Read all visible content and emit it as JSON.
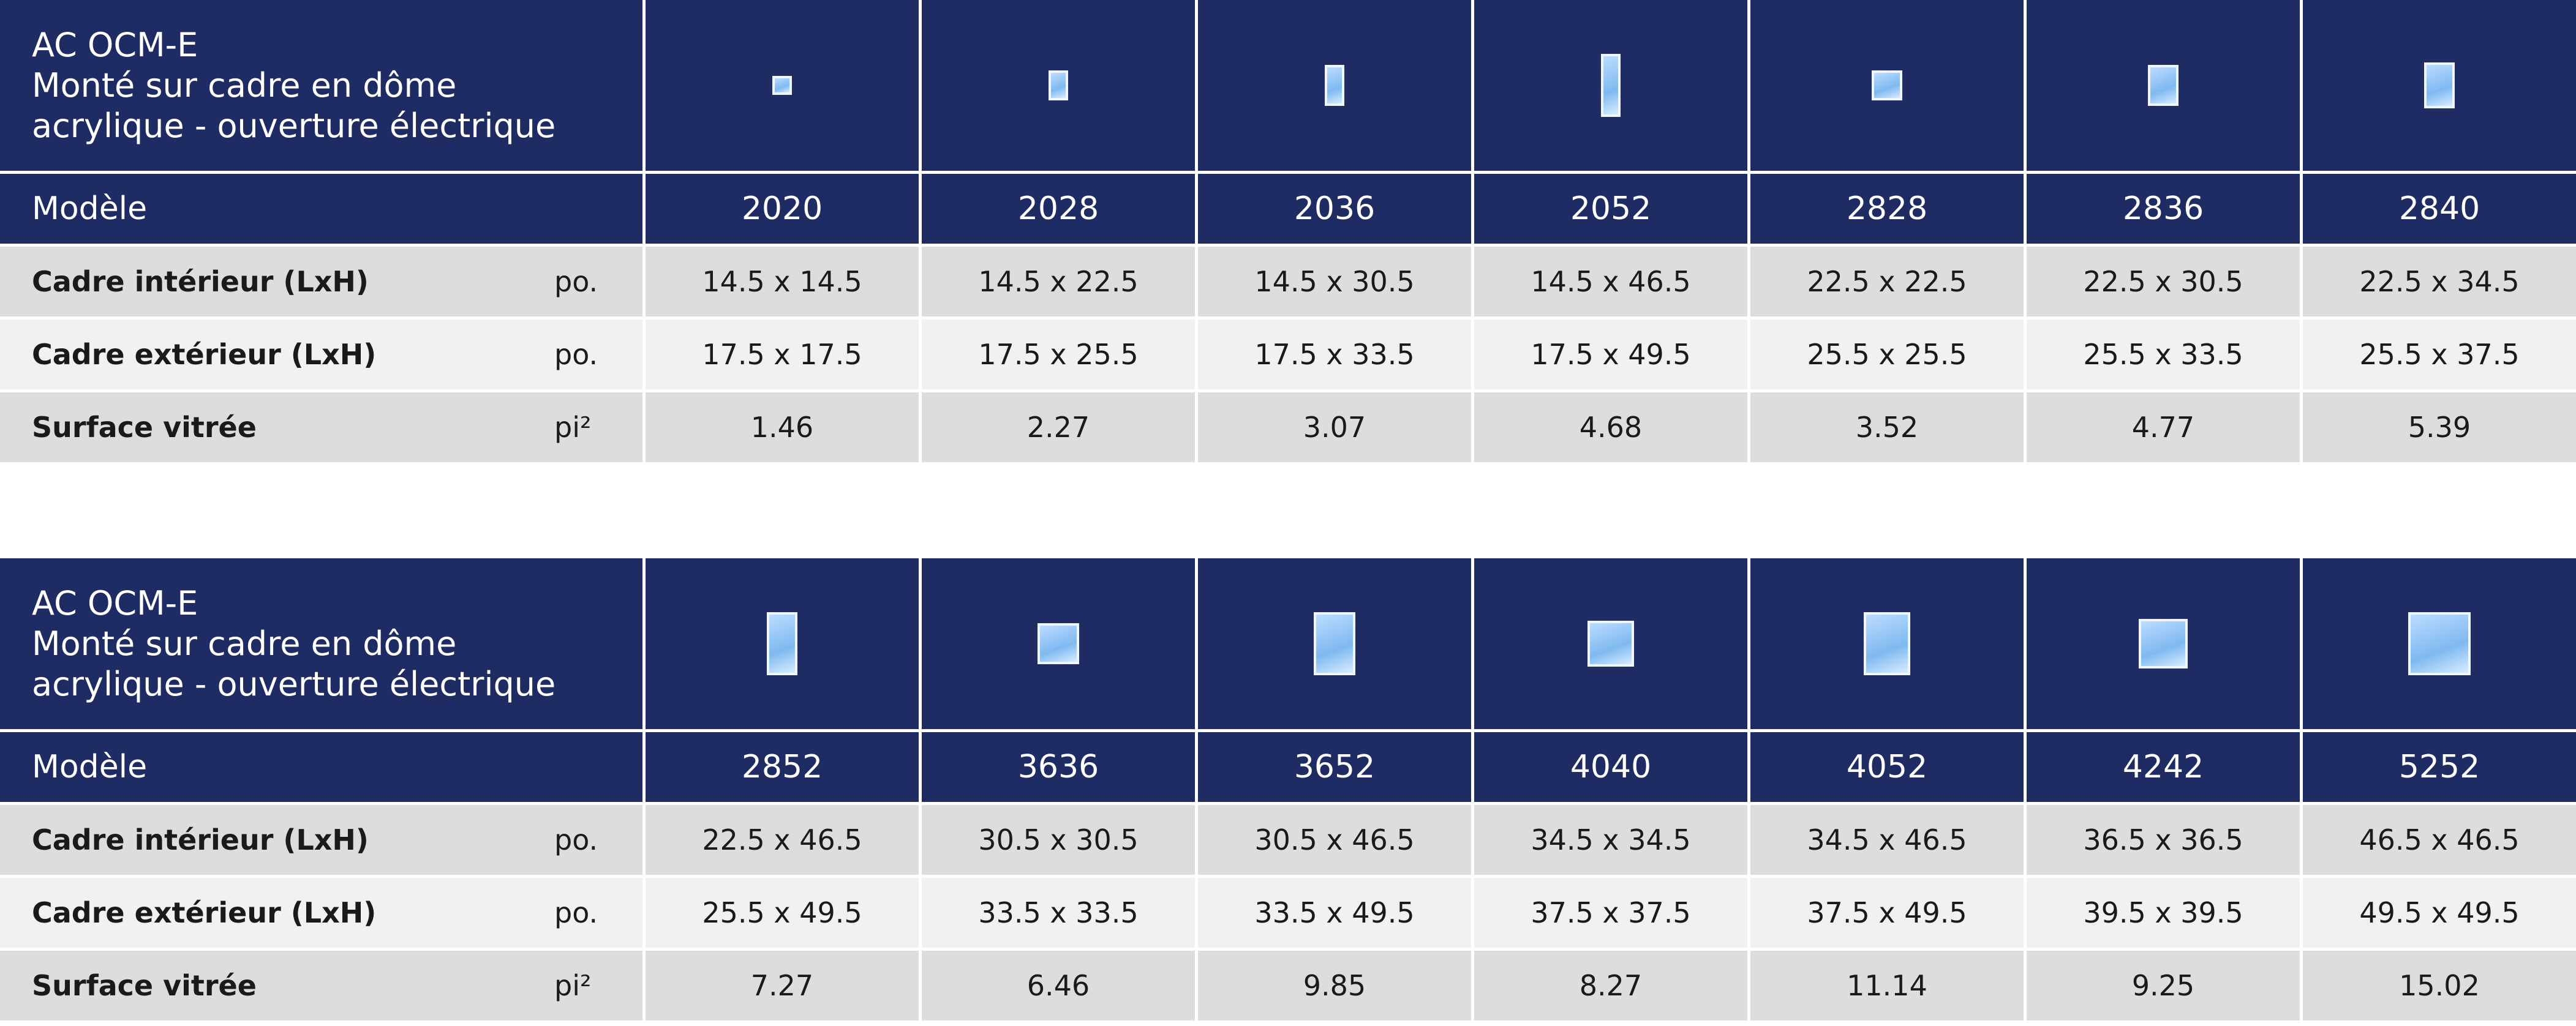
{
  "tables": [
    {
      "title_lines": [
        "AC OCM-E",
        "Monté sur cadre en dôme",
        "acrylique - ouverture électrique"
      ],
      "model_label": "Modèle",
      "models": [
        "2020",
        "2028",
        "2036",
        "2052",
        "2828",
        "2836",
        "2840"
      ],
      "rows": [
        {
          "label": "Cadre intérieur (LxH)",
          "unit": "po.",
          "values": [
            "14.5 x 14.5",
            "14.5 x 22.5",
            "14.5 x 30.5",
            "14.5 x 46.5",
            "22.5 x 22.5",
            "22.5 x 30.5",
            "22.5 x 34.5"
          ]
        },
        {
          "label": "Cadre extérieur (LxH)",
          "unit": "po.",
          "values": [
            "17.5 x 17.5",
            "17.5 x 25.5",
            "17.5 x 33.5",
            "17.5 x 49.5",
            "25.5 x 25.5",
            "25.5 x 33.5",
            "25.5 x 37.5"
          ]
        },
        {
          "label": "Surface vitrée",
          "unit": "pi²",
          "values": [
            "1.46",
            "2.27",
            "3.07",
            "4.68",
            "3.52",
            "4.77",
            "5.39"
          ]
        }
      ]
    },
    {
      "title_lines": [
        "AC OCM-E",
        "Monté sur cadre en dôme",
        "acrylique - ouverture électrique"
      ],
      "model_label": "Modèle",
      "models": [
        "2852",
        "3636",
        "3652",
        "4040",
        "4052",
        "4242",
        "5252"
      ],
      "rows": [
        {
          "label": "Cadre intérieur (LxH)",
          "unit": "po.",
          "values": [
            "22.5 x 46.5",
            "30.5 x 30.5",
            "30.5 x 46.5",
            "34.5 x 34.5",
            "34.5 x 46.5",
            "36.5 x 36.5",
            "46.5 x 46.5"
          ]
        },
        {
          "label": "Cadre extérieur (LxH)",
          "unit": "po.",
          "values": [
            "25.5 x 49.5",
            "33.5 x 33.5",
            "33.5 x 49.5",
            "37.5 x 37.5",
            "37.5 x 49.5",
            "39.5 x 39.5",
            "49.5 x 49.5"
          ]
        },
        {
          "label": "Surface vitrée",
          "unit": "pi²",
          "values": [
            "7.27",
            "6.46",
            "9.85",
            "8.27",
            "11.14",
            "9.25",
            "15.02"
          ]
        }
      ]
    }
  ]
}
